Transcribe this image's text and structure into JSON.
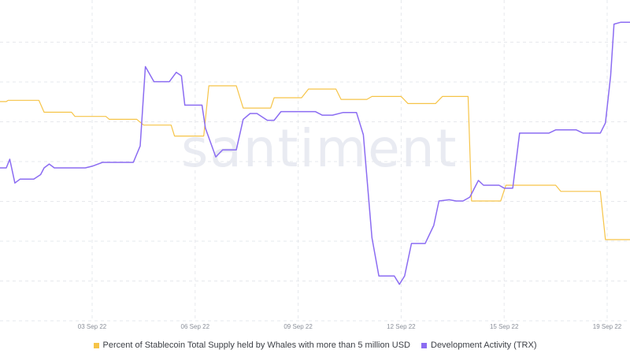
{
  "watermark": "santiment",
  "colors": {
    "series_a": "#f6c448",
    "series_b": "#8b6cf2",
    "grid": "#e6e8ec"
  },
  "chart_data": {
    "type": "line",
    "grid": true,
    "legend_position": "bottom",
    "x_tick_labels": [
      "03 Sep 22",
      "06 Sep 22",
      "09 Sep 22",
      "12 Sep 22",
      "15 Sep 22",
      "19 Sep 22"
    ],
    "x_tick_days": [
      3,
      6,
      9,
      12,
      15,
      18
    ],
    "xlim": [
      0.05,
      18.7
    ],
    "ylim": [
      0,
      100
    ],
    "series": [
      {
        "name": "Percent of Stablecoin Total Supply held by Whales with more than 5 million USD",
        "color": "#f6c448",
        "points": [
          [
            0.05,
            68.4
          ],
          [
            0.5,
            68.4
          ],
          [
            0.55,
            68.8
          ],
          [
            1.45,
            68.8
          ],
          [
            1.6,
            65.1
          ],
          [
            2.4,
            65.1
          ],
          [
            2.5,
            63.8
          ],
          [
            3.4,
            63.8
          ],
          [
            3.5,
            62.9
          ],
          [
            4.3,
            62.9
          ],
          [
            4.5,
            61.1
          ],
          [
            5.3,
            61.1
          ],
          [
            5.4,
            57.7
          ],
          [
            6.25,
            57.7
          ],
          [
            6.4,
            73.3
          ],
          [
            7.2,
            73.3
          ],
          [
            7.4,
            66.4
          ],
          [
            8.2,
            66.4
          ],
          [
            8.3,
            69.6
          ],
          [
            9.1,
            69.6
          ],
          [
            9.3,
            72.3
          ],
          [
            10.1,
            72.3
          ],
          [
            10.25,
            69.1
          ],
          [
            11.0,
            69.1
          ],
          [
            11.15,
            70.0
          ],
          [
            12.0,
            70.0
          ],
          [
            12.2,
            67.8
          ],
          [
            13.0,
            67.8
          ],
          [
            13.2,
            70.0
          ],
          [
            13.95,
            70.0
          ],
          [
            14.05,
            37.5
          ],
          [
            14.9,
            37.5
          ],
          [
            15.05,
            42.4
          ],
          [
            16.5,
            42.4
          ],
          [
            16.65,
            40.5
          ],
          [
            17.8,
            40.5
          ],
          [
            17.95,
            25.5
          ],
          [
            18.7,
            25.5
          ]
        ]
      },
      {
        "name": "Development Activity (TRX)",
        "color": "#8b6cf2",
        "points": [
          [
            0.05,
            47.8
          ],
          [
            0.5,
            47.8
          ],
          [
            0.6,
            50.5
          ],
          [
            0.75,
            43.1
          ],
          [
            0.9,
            44.3
          ],
          [
            1.3,
            44.3
          ],
          [
            1.5,
            45.7
          ],
          [
            1.6,
            47.8
          ],
          [
            1.75,
            49.0
          ],
          [
            1.9,
            47.8
          ],
          [
            2.5,
            47.8
          ],
          [
            2.8,
            47.8
          ],
          [
            3.0,
            48.3
          ],
          [
            3.3,
            49.5
          ],
          [
            3.7,
            49.5
          ],
          [
            4.2,
            49.5
          ],
          [
            4.4,
            54.6
          ],
          [
            4.55,
            79.3
          ],
          [
            4.8,
            74.6
          ],
          [
            5.25,
            74.6
          ],
          [
            5.45,
            77.5
          ],
          [
            5.6,
            76.4
          ],
          [
            5.7,
            67.3
          ],
          [
            6.2,
            67.3
          ],
          [
            6.3,
            60.1
          ],
          [
            6.6,
            51.2
          ],
          [
            6.8,
            53.4
          ],
          [
            7.2,
            53.4
          ],
          [
            7.4,
            62.9
          ],
          [
            7.6,
            64.7
          ],
          [
            7.8,
            64.7
          ],
          [
            8.1,
            62.6
          ],
          [
            8.3,
            62.6
          ],
          [
            8.5,
            65.3
          ],
          [
            9.5,
            65.3
          ],
          [
            9.7,
            64.2
          ],
          [
            10.0,
            64.2
          ],
          [
            10.3,
            65.0
          ],
          [
            10.7,
            65.0
          ],
          [
            10.9,
            58.1
          ],
          [
            11.15,
            26.1
          ],
          [
            11.35,
            14.2
          ],
          [
            11.8,
            14.2
          ],
          [
            11.95,
            11.6
          ],
          [
            12.1,
            14.2
          ],
          [
            12.3,
            24.3
          ],
          [
            12.7,
            24.3
          ],
          [
            12.95,
            29.9
          ],
          [
            13.1,
            37.5
          ],
          [
            13.4,
            37.9
          ],
          [
            13.6,
            37.5
          ],
          [
            13.8,
            37.5
          ],
          [
            14.0,
            38.7
          ],
          [
            14.25,
            43.9
          ],
          [
            14.4,
            42.4
          ],
          [
            14.85,
            42.4
          ],
          [
            15.0,
            41.5
          ],
          [
            15.25,
            41.5
          ],
          [
            15.45,
            58.6
          ],
          [
            16.3,
            58.6
          ],
          [
            16.5,
            59.6
          ],
          [
            17.1,
            59.6
          ],
          [
            17.3,
            58.6
          ],
          [
            17.8,
            58.6
          ],
          [
            17.95,
            61.8
          ],
          [
            18.1,
            76.4
          ],
          [
            18.2,
            92.5
          ],
          [
            18.4,
            93.1
          ],
          [
            18.7,
            93.1
          ]
        ]
      }
    ]
  },
  "legend": {
    "items": [
      {
        "label": "Percent of Stablecoin Total Supply held by Whales with more than 5 million USD",
        "color": "#f6c448"
      },
      {
        "label": "Development Activity (TRX)",
        "color": "#8b6cf2"
      }
    ]
  }
}
